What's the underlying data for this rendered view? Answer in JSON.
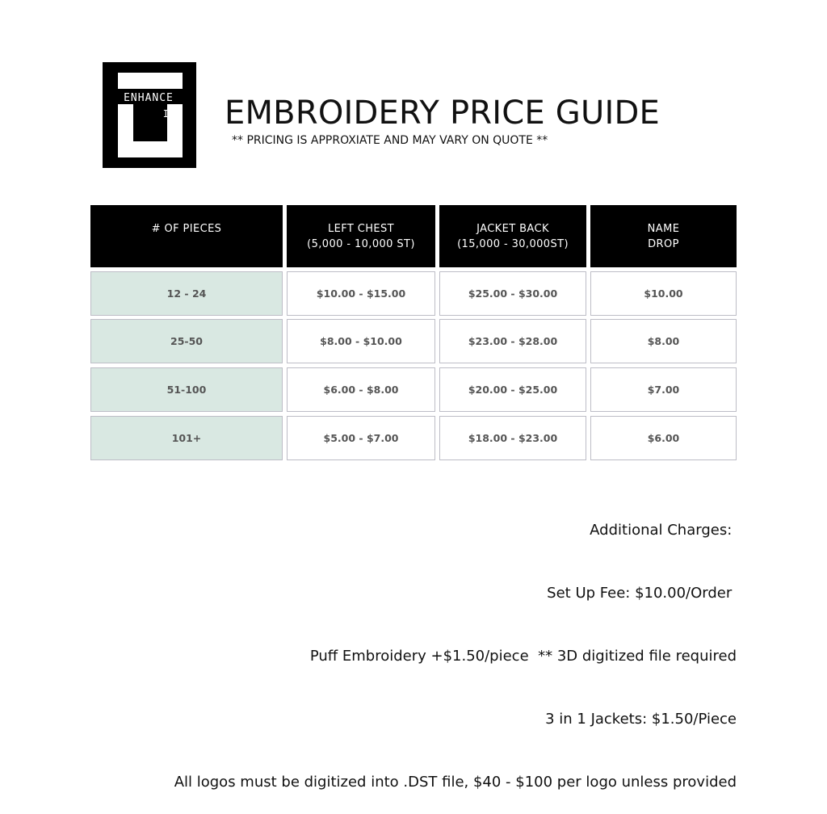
{
  "logo": {
    "line1": "ENHANCE",
    "line2": "IT"
  },
  "header": {
    "title": "EMBROIDERY PRICE GUIDE",
    "subtitle": "** PRICING IS APPROXIATE AND MAY VARY ON QUOTE **"
  },
  "table": {
    "headers": [
      {
        "line1": "# OF PIECES",
        "line2": ""
      },
      {
        "line1": "LEFT CHEST",
        "line2": "(5,000 - 10,000 ST)"
      },
      {
        "line1": "JACKET BACK",
        "line2": "(15,000 - 30,000ST)"
      },
      {
        "line1": "NAME",
        "line2": "DROP"
      }
    ],
    "rows": [
      [
        "12 - 24",
        "$10.00 - $15.00",
        "$25.00 - $30.00",
        "$10.00"
      ],
      [
        "25-50",
        "$8.00 - $10.00",
        "$23.00 - $28.00",
        "$8.00"
      ],
      [
        "51-100",
        "$6.00 - $8.00",
        "$20.00 - $25.00",
        "$7.00"
      ],
      [
        "101+",
        "$5.00 - $7.00",
        "$18.00 - $23.00",
        "$6.00"
      ]
    ]
  },
  "notes": [
    "Additional Charges: ",
    "Set Up Fee: $10.00/Order ",
    "Puff Embroidery +$1.50/piece  ** 3D digitized file required",
    "3 in 1 Jackets: $1.50/Piece",
    "All logos must be digitized into .DST file, $40 - $100 per logo unless provided"
  ],
  "colors": {
    "header_bg": "#000000",
    "qty_bg": "#d9e8e2",
    "cell_border": "#bdbdc6"
  }
}
